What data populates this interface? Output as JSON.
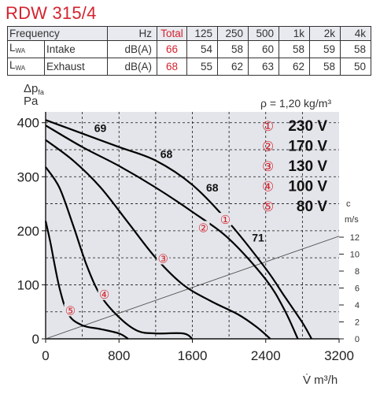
{
  "title": "RDW 315/4",
  "table": {
    "header": [
      "Frequency",
      "Hz",
      "Total",
      "125",
      "250",
      "500",
      "1k",
      "2k",
      "4k"
    ],
    "rows": [
      {
        "sym": "L",
        "sym_sub": "WA",
        "label": "Intake",
        "unit": "dB(A)",
        "total": "66",
        "values": [
          "54",
          "58",
          "60",
          "58",
          "59",
          "58"
        ]
      },
      {
        "sym": "L",
        "sym_sub": "WA",
        "label": "Exhaust",
        "unit": "dB(A)",
        "total": "68",
        "values": [
          "55",
          "62",
          "63",
          "62",
          "58",
          "50"
        ]
      }
    ]
  },
  "chart_data": {
    "type": "line",
    "title": "RDW 315/4",
    "ylabel_line1": "Δp",
    "ylabel_sub": "fa",
    "ylabel_line2": "Pa",
    "xlabel": "V̇ m³/h",
    "xlim": [
      0,
      3200
    ],
    "ylim": [
      0,
      420
    ],
    "x_ticks": [
      0,
      800,
      1600,
      2400,
      3200
    ],
    "y_ticks": [
      0,
      100,
      200,
      300,
      400
    ],
    "density_label": "ρ = 1,20 kg/m³",
    "right_axis": {
      "label_top": "c",
      "label_unit": "m/s",
      "ticks": [
        0,
        2,
        4,
        6,
        8,
        10,
        12
      ]
    },
    "grid": true,
    "series": [
      {
        "name": "230 V",
        "marker": "①",
        "x": [
          0,
          400,
          800,
          1200,
          1600,
          2000,
          2400,
          2600,
          2800,
          2900
        ],
        "y": [
          405,
          380,
          355,
          330,
          285,
          215,
          130,
          80,
          30,
          0
        ]
      },
      {
        "name": "170 V",
        "marker": "②",
        "x": [
          0,
          400,
          800,
          1200,
          1600,
          2000,
          2400,
          2600,
          2750
        ],
        "y": [
          395,
          355,
          320,
          280,
          235,
          185,
          110,
          55,
          0
        ]
      },
      {
        "name": "130 V",
        "marker": "③",
        "x": [
          0,
          300,
          600,
          900,
          1200,
          1500,
          1800,
          2100,
          2300,
          2450
        ],
        "y": [
          368,
          330,
          280,
          215,
          150,
          100,
          70,
          45,
          22,
          0
        ]
      },
      {
        "name": "100 V",
        "marker": "④",
        "x": [
          0,
          150,
          300,
          450,
          600,
          800,
          1000,
          1200,
          1500,
          1600
        ],
        "y": [
          318,
          280,
          210,
          135,
          80,
          40,
          15,
          10,
          10,
          0
        ]
      },
      {
        "name": "80 V",
        "marker": "⑤",
        "x": [
          0,
          50,
          150,
          250,
          400,
          600,
          800,
          900
        ],
        "y": [
          218,
          180,
          95,
          45,
          25,
          18,
          10,
          0
        ]
      }
    ],
    "system_line": {
      "x": [
        0,
        3200
      ],
      "y": [
        0,
        190
      ]
    },
    "sound_labels": [
      {
        "text": "69",
        "x": 530,
        "y": 383
      },
      {
        "text": "68",
        "x": 1250,
        "y": 335
      },
      {
        "text": "68",
        "x": 1750,
        "y": 273
      },
      {
        "text": "71",
        "x": 2250,
        "y": 180
      }
    ],
    "curve_markers": [
      {
        "text": "①",
        "x": 1960,
        "y": 220
      },
      {
        "text": "②",
        "x": 1720,
        "y": 205
      },
      {
        "text": "③",
        "x": 1280,
        "y": 148
      },
      {
        "text": "④",
        "x": 640,
        "y": 82
      },
      {
        "text": "⑤",
        "x": 270,
        "y": 52
      }
    ]
  }
}
